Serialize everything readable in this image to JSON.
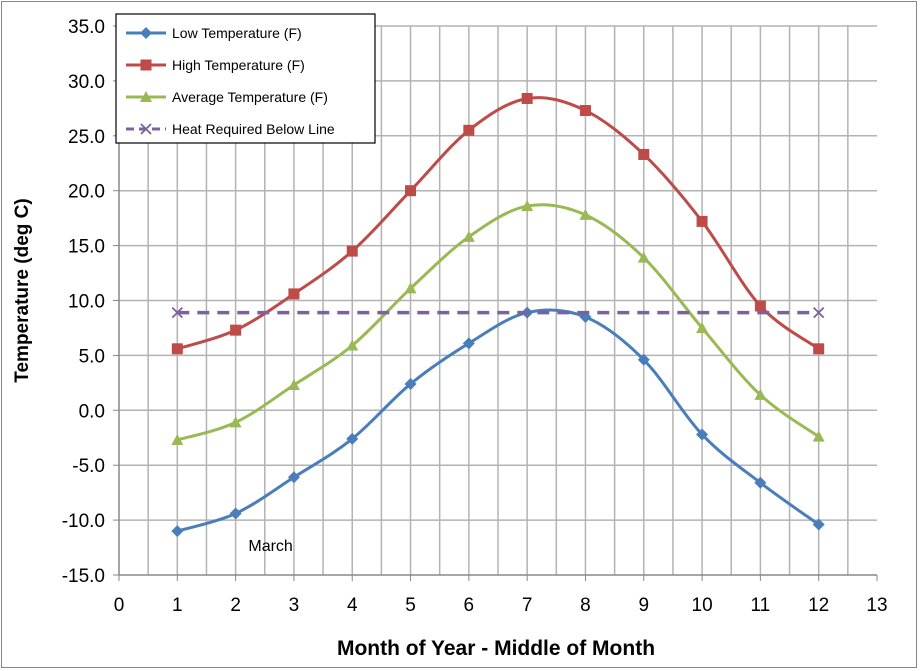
{
  "chart_data": {
    "type": "line",
    "title": "",
    "xlabel": "Month of Year - Middle of Month",
    "ylabel": "Temperature (deg C)",
    "xlim": [
      0,
      13
    ],
    "ylim": [
      -15,
      35
    ],
    "xticks": [
      0,
      1,
      2,
      3,
      4,
      5,
      6,
      7,
      8,
      9,
      10,
      11,
      12,
      13
    ],
    "yticks": [
      -15,
      -10,
      -5,
      0,
      5,
      10,
      15,
      20,
      25,
      30,
      35
    ],
    "grid": true,
    "smooth": true,
    "legend_position": "top-left",
    "annotations": [
      {
        "text": "March",
        "x": 2.6,
        "y": -12.8
      }
    ],
    "series": [
      {
        "name": "Low Temperature (F)",
        "color": "#4A7EBB",
        "marker": "diamond",
        "dash": false,
        "x": [
          1,
          2,
          3,
          4,
          5,
          6,
          7,
          8,
          9,
          10,
          11,
          12
        ],
        "values": [
          -11.0,
          -9.4,
          -6.1,
          -2.6,
          2.4,
          6.1,
          8.9,
          8.5,
          4.6,
          -2.2,
          -6.6,
          -10.4
        ]
      },
      {
        "name": "High Temperature (F)",
        "color": "#BE4B48",
        "marker": "square",
        "dash": false,
        "x": [
          1,
          2,
          3,
          4,
          5,
          6,
          7,
          8,
          9,
          10,
          11,
          12
        ],
        "values": [
          5.6,
          7.3,
          10.6,
          14.5,
          20.0,
          25.5,
          28.4,
          27.3,
          23.3,
          17.2,
          9.5,
          5.6
        ]
      },
      {
        "name": "Average Temperature (F)",
        "color": "#98B954",
        "marker": "triangle",
        "dash": false,
        "x": [
          1,
          2,
          3,
          4,
          5,
          6,
          7,
          8,
          9,
          10,
          11,
          12
        ],
        "values": [
          -2.7,
          -1.1,
          2.3,
          5.9,
          11.1,
          15.8,
          18.6,
          17.8,
          13.9,
          7.5,
          1.4,
          -2.4
        ]
      },
      {
        "name": "Heat Required Below Line",
        "color": "#7D60A0",
        "marker": "x",
        "dash": true,
        "x": [
          1,
          12
        ],
        "values": [
          8.9,
          8.9
        ]
      }
    ]
  }
}
